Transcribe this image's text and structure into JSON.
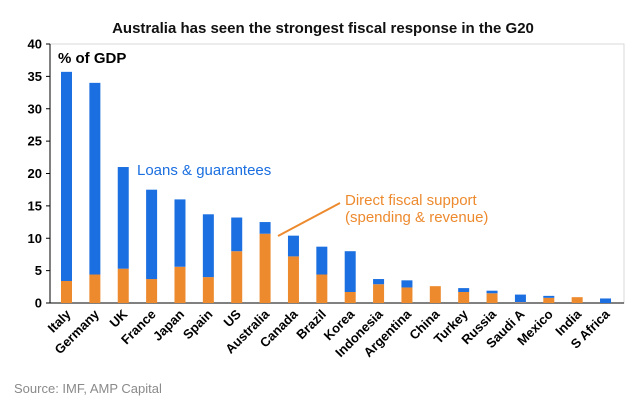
{
  "chart_data": {
    "type": "bar",
    "stacked": true,
    "title": "Australia has seen the strongest fiscal response in the G20",
    "ylabel": "% of GDP",
    "ylim": [
      0,
      40
    ],
    "yticks": [
      0,
      5,
      10,
      15,
      20,
      25,
      30,
      35,
      40
    ],
    "categories": [
      "Italy",
      "Germany",
      "UK",
      "France",
      "Japan",
      "Spain",
      "US",
      "Australia",
      "Canada",
      "Brazil",
      "Korea",
      "Indonesia",
      "Argentina",
      "China",
      "Turkey",
      "Russia",
      "Saudi A",
      "Mexico",
      "India",
      "S Africa"
    ],
    "series": [
      {
        "name": "Direct fiscal support (spending & revenue)",
        "color": "#ED8A2E",
        "values": [
          3.4,
          4.4,
          5.3,
          3.7,
          5.6,
          4.0,
          8.0,
          10.7,
          7.2,
          4.4,
          1.7,
          2.9,
          2.4,
          2.6,
          1.7,
          1.5,
          0.1,
          0.8,
          0.9,
          0.0
        ]
      },
      {
        "name": "Loans & guarantees",
        "color": "#1B6FE0",
        "values": [
          32.3,
          29.6,
          15.7,
          13.8,
          10.4,
          9.7,
          5.2,
          1.8,
          3.2,
          4.3,
          6.3,
          0.8,
          1.1,
          0.0,
          0.6,
          0.4,
          1.2,
          0.3,
          0.0,
          0.7
        ]
      }
    ],
    "annotations": {
      "loans_label": "Loans & guarantees",
      "direct_label_line1": "Direct fiscal support",
      "direct_label_line2": "(spending & revenue)"
    },
    "source": "Source: IMF, AMP Capital"
  }
}
